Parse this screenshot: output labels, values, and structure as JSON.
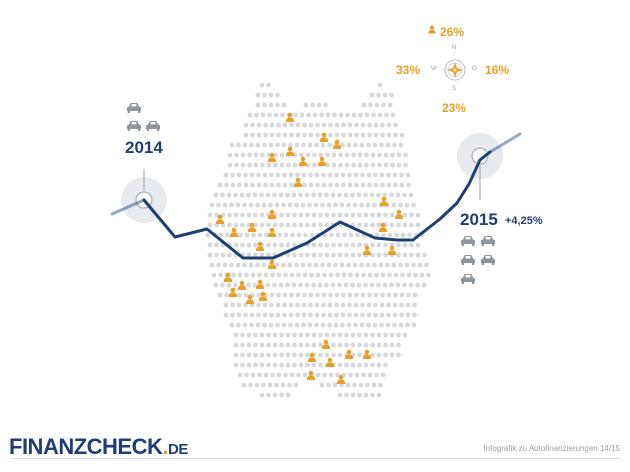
{
  "colors": {
    "navy": "#1d3f73",
    "orange": "#e8a126",
    "map_dot": "#d6d8dc",
    "grey_icon": "#8f959c",
    "halo": "#dfe3e8"
  },
  "compass": {
    "north_pct": "26%",
    "west_pct": "33%",
    "east_pct": "16%",
    "south_pct": "23%",
    "letters": {
      "n": "N",
      "w": "W",
      "o": "O",
      "s": "S"
    },
    "icon": "compass-icon"
  },
  "year_start": {
    "label": "2014",
    "car_count": 3
  },
  "year_end": {
    "label": "2015",
    "growth": "+4,25%",
    "car_count": 5
  },
  "footer": {
    "brand_main": "FINANZCHECK",
    "brand_dot": ".",
    "brand_tld": "DE",
    "caption": "Infografik zu Autofinanzierungen 14/15"
  },
  "icons": {
    "person": "person-icon",
    "car": "car-icon"
  }
}
